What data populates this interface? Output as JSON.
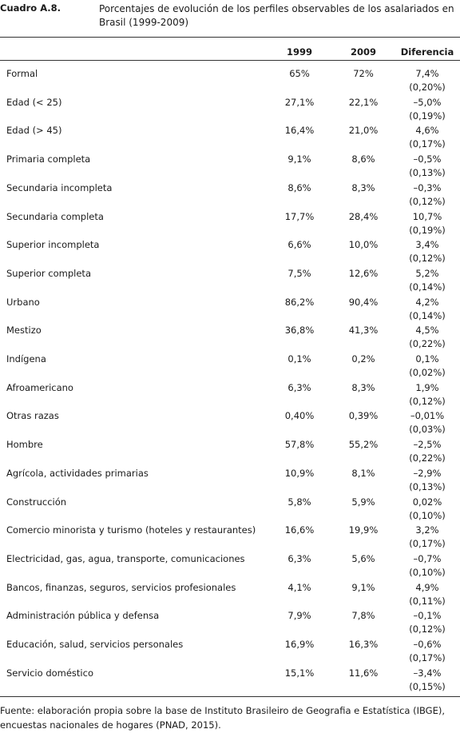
{
  "header": {
    "label": "Cuadro A.8.",
    "title": "Porcentajes de evolución de los perfiles observables de los asalariados en Brasil (1999-2009)"
  },
  "table": {
    "columns": [
      "1999",
      "2009",
      "Diferencia"
    ],
    "rows": [
      [
        "Formal",
        "65%",
        "72%",
        "7,4%",
        "(0,20%)"
      ],
      [
        "Edad (< 25)",
        "27,1%",
        "22,1%",
        "–5,0%",
        "(0,19%)"
      ],
      [
        "Edad (> 45)",
        "16,4%",
        "21,0%",
        "4,6%",
        "(0,17%)"
      ],
      [
        "Primaria completa",
        "9,1%",
        "8,6%",
        "–0,5%",
        "(0,13%)"
      ],
      [
        "Secundaria incompleta",
        "8,6%",
        "8,3%",
        "–0,3%",
        "(0,12%)"
      ],
      [
        "Secundaria completa",
        "17,7%",
        "28,4%",
        "10,7%",
        "(0,19%)"
      ],
      [
        "Superior incompleta",
        "6,6%",
        "10,0%",
        "3,4%",
        "(0,12%)"
      ],
      [
        "Superior completa",
        "7,5%",
        "12,6%",
        "5,2%",
        "(0,14%)"
      ],
      [
        "Urbano",
        "86,2%",
        "90,4%",
        "4,2%",
        "(0,14%)"
      ],
      [
        "Mestizo",
        "36,8%",
        "41,3%",
        "4,5%",
        "(0,22%)"
      ],
      [
        "Indígena",
        "0,1%",
        "0,2%",
        "0,1%",
        "(0,02%)"
      ],
      [
        "Afroamericano",
        "6,3%",
        "8,3%",
        "1,9%",
        "(0,12%)"
      ],
      [
        "Otras razas",
        "0,40%",
        "0,39%",
        "–0,01%",
        "(0,03%)"
      ],
      [
        "Hombre",
        "57,8%",
        "55,2%",
        "–2,5%",
        "(0,22%)"
      ],
      [
        "Agrícola, actividades primarias",
        "10,9%",
        "8,1%",
        "–2,9%",
        "(0,13%)"
      ],
      [
        "Construcción",
        "5,8%",
        "5,9%",
        "0,02%",
        "(0,10%)"
      ],
      [
        "Comercio minorista y turismo (hoteles y restaurantes)",
        "16,6%",
        "19,9%",
        "3,2%",
        "(0,17%)"
      ],
      [
        "Electricidad, gas, agua, transporte, comunicaciones",
        "6,3%",
        "5,6%",
        "–0,7%",
        "(0,10%)"
      ],
      [
        "Bancos, finanzas, seguros, servicios profesionales",
        "4,1%",
        "9,1%",
        "4,9%",
        "(0,11%)"
      ],
      [
        "Administración pública y defensa",
        "7,9%",
        "7,8%",
        "–0,1%",
        "(0,12%)"
      ],
      [
        "Educación, salud, servicios personales",
        "16,9%",
        "16,3%",
        "–0,6%",
        "(0,17%)"
      ],
      [
        "Servicio doméstico",
        "15,1%",
        "11,6%",
        "–3,4%",
        "(0,15%)"
      ]
    ]
  },
  "footnote": "Fuente: elaboración propia sobre la base de Instituto Brasileiro de Geografia e Estatística (IBGE), encuestas nacionales de hogares (PNAD, 2015)."
}
